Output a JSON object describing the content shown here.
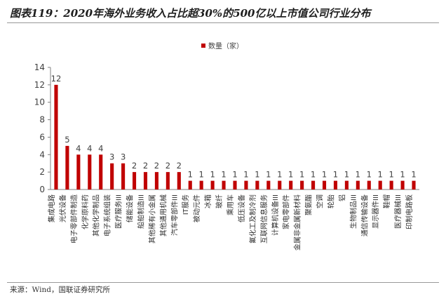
{
  "title": "图表119：2020年海外业务收入占比超30%的500亿以上市值公司行业分布",
  "source": "来源：Wind，国联证券研究所",
  "colors": {
    "bar": "#c00000",
    "axis": "#808080",
    "text": "#404040"
  },
  "chart_data": {
    "type": "bar",
    "series_name": "数量（家）",
    "legend_position": "top-center",
    "ylim": [
      0,
      14
    ],
    "yticks": [
      0,
      2,
      4,
      6,
      8,
      10,
      12,
      14
    ],
    "categories": [
      "集成电路",
      "光伏设备",
      "电子零部件制造",
      "化学原料药",
      "其他化学制品",
      "电子系统组装",
      "医疗服务III",
      "储能设备",
      "船舶制造III",
      "其他稀有小金属",
      "其他通用机械",
      "汽车零部件III",
      "IT服务",
      "被动元件",
      "冰箱",
      "玻纤",
      "乘用车",
      "低压设备",
      "氟化工及制冷剂",
      "互联网信息服务",
      "计算机设备III",
      "家电零部件",
      "金属非金属新材料",
      "聚氨酯",
      "空调",
      "轮胎",
      "铝",
      "生物制品III",
      "通信传输设备",
      "显示器件III",
      "鞋帽",
      "医疗器械III",
      "印制电路板"
    ],
    "values": [
      12,
      5,
      4,
      4,
      4,
      3,
      3,
      2,
      2,
      2,
      2,
      2,
      1,
      1,
      1,
      1,
      1,
      1,
      1,
      1,
      1,
      1,
      1,
      1,
      1,
      1,
      1,
      1,
      1,
      1,
      1,
      1,
      1
    ]
  }
}
